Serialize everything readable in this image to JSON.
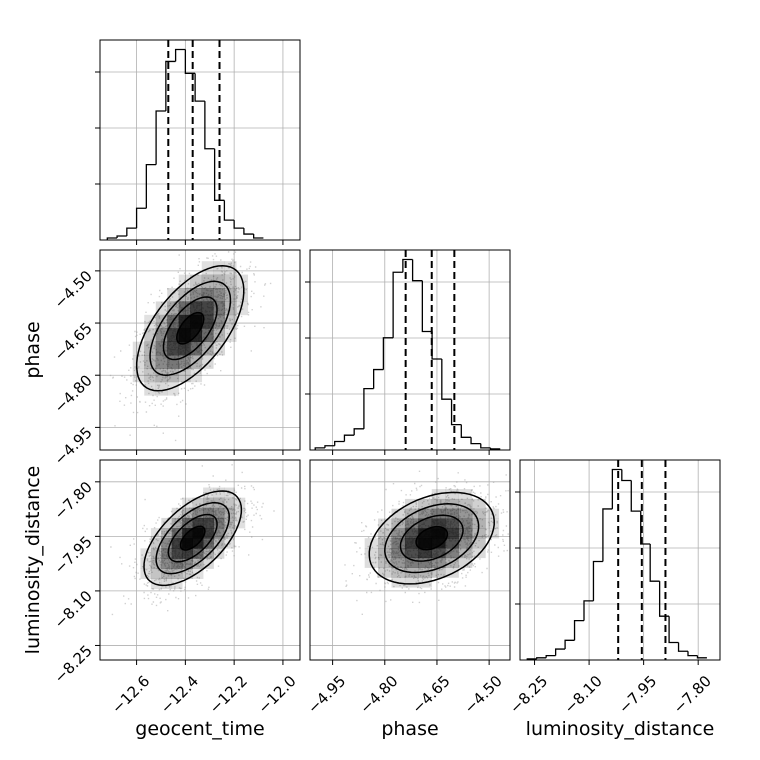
{
  "chart_data": {
    "type": "corner",
    "parameters": [
      {
        "name": "geocent_time",
        "label": "geocent_time",
        "range": [
          -12.75,
          -11.93
        ],
        "ticks": [
          -12.6,
          -12.4,
          -12.2,
          -12.0
        ],
        "tick_labels": [
          "−12.6",
          "−12.4",
          "−12.2",
          "−12.0"
        ],
        "quantiles": [
          -12.47,
          -12.37,
          -12.26
        ],
        "hist_edges_start": -12.72,
        "hist_bin_width": 0.04,
        "hist_counts": [
          1,
          2,
          6,
          16,
          38,
          65,
          90,
          96,
          84,
          70,
          46,
          20,
          10,
          6,
          3,
          1
        ]
      },
      {
        "name": "phase",
        "label": "phase",
        "range": [
          -5.015,
          -4.44
        ],
        "ticks": [
          -4.95,
          -4.8,
          -4.65,
          -4.5
        ],
        "tick_labels": [
          "−4.95",
          "−4.80",
          "−4.65",
          "−4.50"
        ],
        "quantiles": [
          -4.74,
          -4.665,
          -4.6
        ],
        "hist_edges_start": -5.0,
        "hist_bin_width": 0.028,
        "hist_counts": [
          1,
          2,
          4,
          7,
          10,
          29,
          38,
          53,
          84,
          90,
          80,
          56,
          43,
          24,
          12,
          6,
          3,
          1,
          0.5
        ]
      },
      {
        "name": "luminosity_distance",
        "label": "luminosity_distance",
        "range": [
          -8.29,
          -7.74
        ],
        "ticks": [
          -8.25,
          -8.1,
          -7.95,
          -7.8
        ],
        "tick_labels": [
          "−8.25",
          "−8.10",
          "−7.95",
          "−7.80"
        ],
        "quantiles": [
          -8.02,
          -7.955,
          -7.89
        ],
        "hist_edges_start": -8.27,
        "hist_bin_width": 0.026,
        "hist_counts": [
          0.5,
          1,
          2,
          5,
          9,
          18,
          27,
          45,
          69,
          87,
          82,
          68,
          53,
          36,
          20,
          8,
          4,
          2,
          1
        ]
      }
    ],
    "pairs": [
      {
        "x": "geocent_time",
        "y": "phase",
        "mean": [
          -12.38,
          -4.665
        ],
        "sd": [
          0.11,
          0.09
        ],
        "corr": 0.6,
        "contour_levels": [
          0.118,
          0.393,
          0.675,
          0.864
        ]
      },
      {
        "x": "geocent_time",
        "y": "luminosity_distance",
        "mean": [
          -12.37,
          -7.955
        ],
        "sd": [
          0.1,
          0.065
        ],
        "corr": 0.6,
        "contour_levels": [
          0.118,
          0.393,
          0.675,
          0.864
        ]
      },
      {
        "x": "phase",
        "y": "luminosity_distance",
        "mean": [
          -4.665,
          -7.955
        ],
        "sd": [
          0.09,
          0.063
        ],
        "corr": 0.35,
        "contour_levels": [
          0.118,
          0.393,
          0.675,
          0.864
        ]
      }
    ],
    "grid": true,
    "colors": {
      "line": "#000000",
      "grid": "#b0b0b0",
      "density": "#000000",
      "points": "#9a9a9a"
    }
  }
}
